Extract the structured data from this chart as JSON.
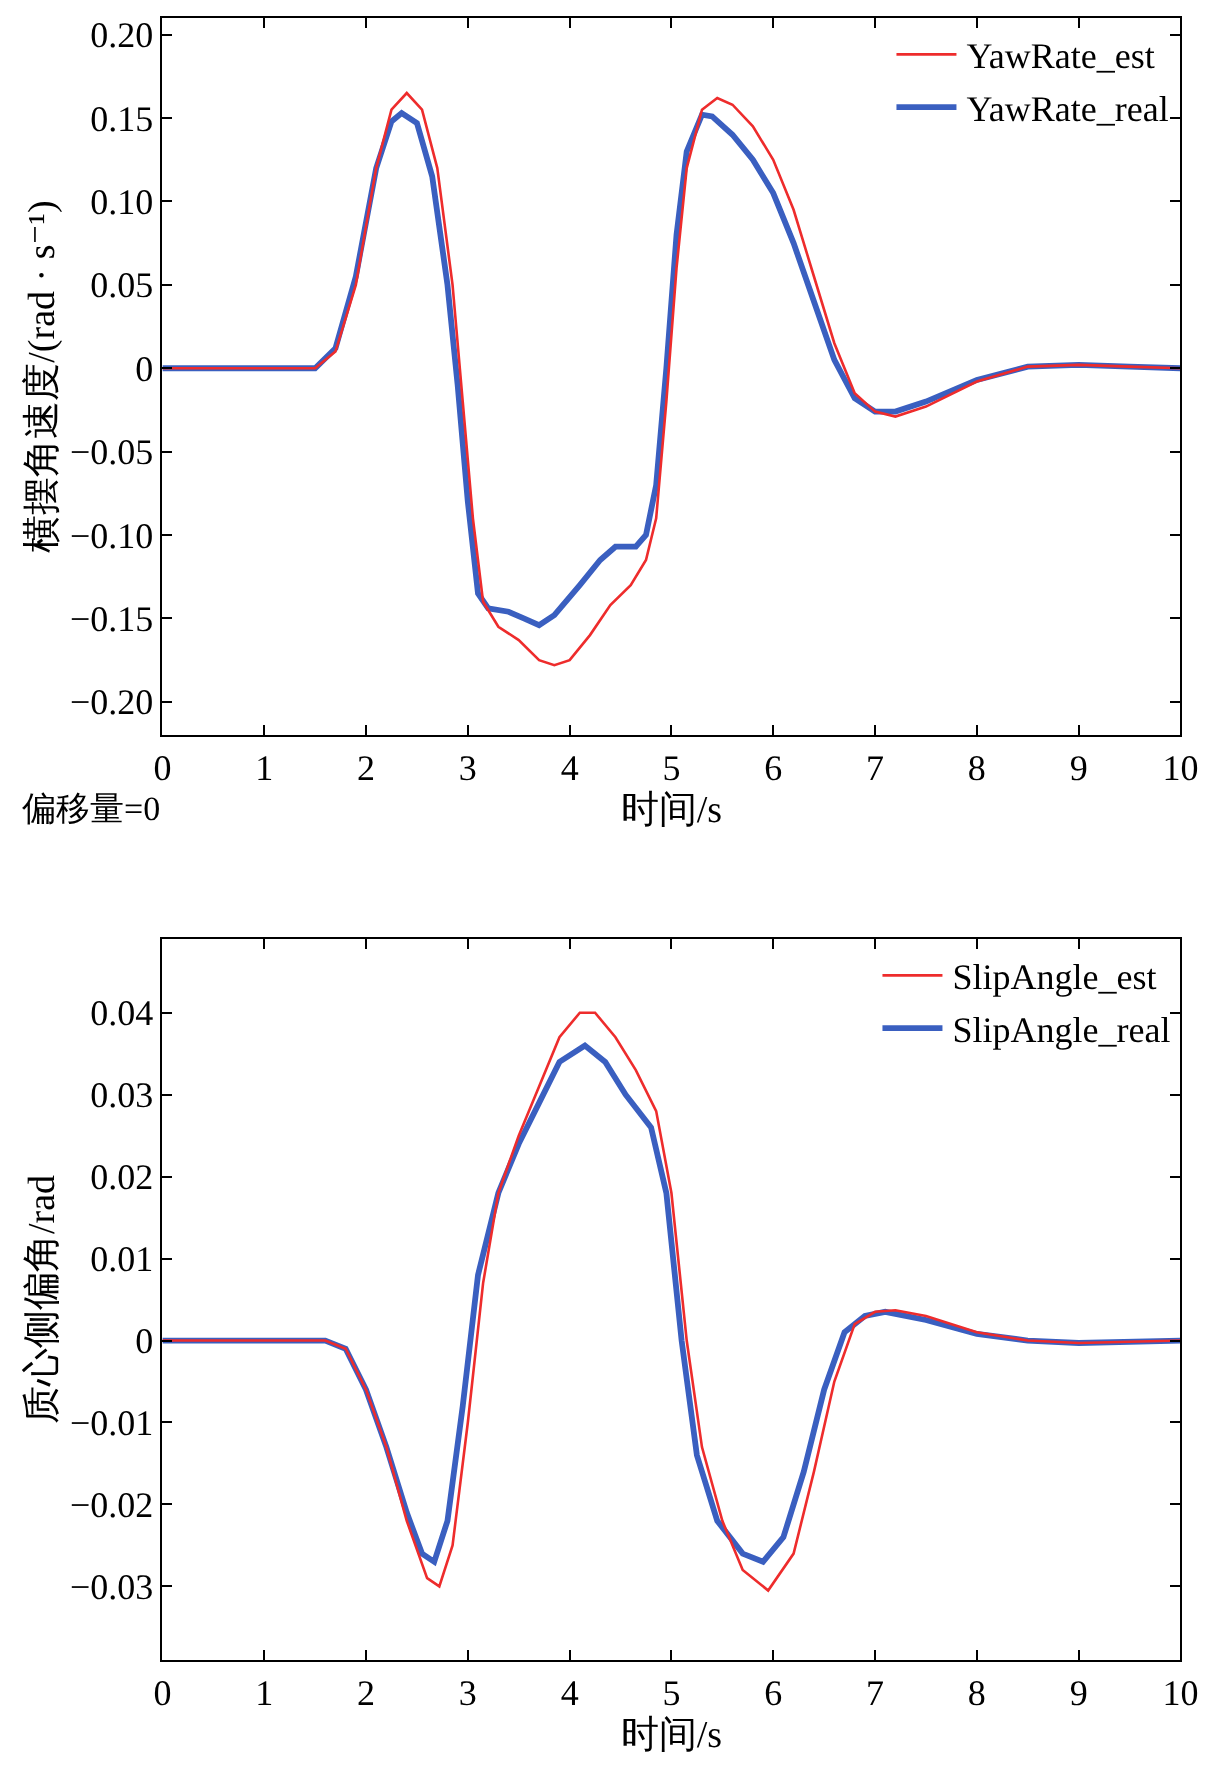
{
  "chart_data": [
    {
      "type": "line",
      "xlabel": "时间/s",
      "ylabel": "横摆角速度/(rad · s⁻¹)",
      "xlim": [
        0,
        10
      ],
      "xticks": [
        0,
        1,
        2,
        3,
        4,
        5,
        6,
        7,
        8,
        9,
        10
      ],
      "ylim": [
        -0.22,
        0.21
      ],
      "yticks": [
        {
          "value": -0.2,
          "label": "−0.20"
        },
        {
          "value": -0.15,
          "label": "−0.15"
        },
        {
          "value": -0.1,
          "label": "−0.10"
        },
        {
          "value": -0.05,
          "label": "−0.05"
        },
        0,
        {
          "value": 0.05,
          "label": "0.05"
        },
        {
          "value": 0.1,
          "label": "0.10"
        },
        {
          "value": 0.15,
          "label": "0.15"
        },
        {
          "value": 0.2,
          "label": "0.20"
        }
      ],
      "grid": false,
      "legend": "top right",
      "marker": "none",
      "line_style": "solid",
      "annotations": [
        "偏移量=0"
      ],
      "series": [
        {
          "name": "YawRate_est",
          "color": "#ee2c2c",
          "x": [
            0,
            1.5,
            1.7,
            1.9,
            2.1,
            2.25,
            2.4,
            2.55,
            2.7,
            2.85,
            2.95,
            3.05,
            3.15,
            3.3,
            3.5,
            3.7,
            3.85,
            4.0,
            4.2,
            4.4,
            4.6,
            4.75,
            4.85,
            4.95,
            5.05,
            5.15,
            5.3,
            5.45,
            5.6,
            5.8,
            6.0,
            6.2,
            6.4,
            6.6,
            6.8,
            7.0,
            7.2,
            7.5,
            8.0,
            8.5,
            9.0,
            9.5,
            10
          ],
          "values": [
            0,
            0,
            0.01,
            0.05,
            0.12,
            0.155,
            0.165,
            0.155,
            0.12,
            0.05,
            -0.02,
            -0.09,
            -0.14,
            -0.155,
            -0.163,
            -0.175,
            -0.178,
            -0.175,
            -0.16,
            -0.142,
            -0.13,
            -0.115,
            -0.09,
            -0.02,
            0.06,
            0.12,
            0.155,
            0.162,
            0.158,
            0.145,
            0.125,
            0.095,
            0.055,
            0.015,
            -0.015,
            -0.026,
            -0.029,
            -0.023,
            -0.008,
            0.001,
            0.002,
            0.001,
            0
          ]
        },
        {
          "name": "YawRate_real",
          "color": "#3a5fc0",
          "x": [
            0,
            1.5,
            1.7,
            1.9,
            2.1,
            2.25,
            2.35,
            2.5,
            2.65,
            2.8,
            2.9,
            3.0,
            3.1,
            3.2,
            3.4,
            3.55,
            3.7,
            3.85,
            4.1,
            4.3,
            4.45,
            4.65,
            4.75,
            4.85,
            4.95,
            5.05,
            5.15,
            5.3,
            5.4,
            5.6,
            5.8,
            6.0,
            6.2,
            6.4,
            6.6,
            6.8,
            7.0,
            7.2,
            7.5,
            8.0,
            8.5,
            9.0,
            9.5,
            10
          ],
          "values": [
            0,
            0,
            0.012,
            0.055,
            0.12,
            0.148,
            0.153,
            0.147,
            0.115,
            0.05,
            -0.01,
            -0.08,
            -0.135,
            -0.144,
            -0.146,
            -0.15,
            -0.154,
            -0.148,
            -0.13,
            -0.115,
            -0.107,
            -0.107,
            -0.1,
            -0.07,
            0.0,
            0.08,
            0.13,
            0.152,
            0.151,
            0.14,
            0.125,
            0.105,
            0.075,
            0.04,
            0.005,
            -0.018,
            -0.026,
            -0.026,
            -0.02,
            -0.007,
            0.001,
            0.002,
            0.001,
            0
          ]
        }
      ]
    },
    {
      "type": "line",
      "xlabel": "时间/s",
      "ylabel": "质心侧偏角/rad",
      "xlim": [
        0,
        10
      ],
      "xticks": [
        0,
        1,
        2,
        3,
        4,
        5,
        6,
        7,
        8,
        9,
        10
      ],
      "ylim": [
        -0.039,
        0.049
      ],
      "yticks": [
        {
          "value": -0.03,
          "label": "−0.03"
        },
        {
          "value": -0.02,
          "label": "−0.02"
        },
        {
          "value": -0.01,
          "label": "−0.01"
        },
        0,
        {
          "value": 0.01,
          "label": "0.01"
        },
        {
          "value": 0.02,
          "label": "0.02"
        },
        {
          "value": 0.03,
          "label": "0.03"
        },
        {
          "value": 0.04,
          "label": "0.04"
        }
      ],
      "grid": false,
      "legend": "top right",
      "marker": "none",
      "line_style": "solid",
      "series": [
        {
          "name": "SlipAngle_est",
          "color": "#ee2c2c",
          "x": [
            0,
            1.6,
            1.8,
            2.0,
            2.2,
            2.4,
            2.6,
            2.72,
            2.85,
            3.0,
            3.15,
            3.3,
            3.5,
            3.7,
            3.9,
            4.1,
            4.25,
            4.45,
            4.65,
            4.85,
            5.0,
            5.15,
            5.3,
            5.5,
            5.7,
            5.95,
            6.2,
            6.4,
            6.6,
            6.8,
            7.0,
            7.2,
            7.5,
            8.0,
            8.5,
            9.0,
            10
          ],
          "values": [
            0,
            0,
            -0.001,
            -0.006,
            -0.013,
            -0.022,
            -0.029,
            -0.03,
            -0.025,
            -0.01,
            0.007,
            0.018,
            0.025,
            0.031,
            0.037,
            0.04,
            0.04,
            0.037,
            0.033,
            0.028,
            0.018,
            0.0,
            -0.013,
            -0.022,
            -0.028,
            -0.0305,
            -0.026,
            -0.016,
            -0.005,
            0.002,
            0.0035,
            0.0037,
            0.003,
            0.001,
            0,
            -0.0003,
            0
          ]
        },
        {
          "name": "SlipAngle_real",
          "color": "#3a5fc0",
          "x": [
            0,
            1.6,
            1.8,
            2.0,
            2.2,
            2.4,
            2.55,
            2.67,
            2.8,
            2.95,
            3.1,
            3.3,
            3.5,
            3.7,
            3.9,
            4.15,
            4.35,
            4.55,
            4.8,
            4.95,
            5.1,
            5.25,
            5.45,
            5.7,
            5.9,
            6.1,
            6.3,
            6.5,
            6.7,
            6.9,
            7.1,
            7.5,
            8.0,
            8.5,
            9.0,
            10
          ],
          "values": [
            0,
            0,
            -0.001,
            -0.006,
            -0.013,
            -0.021,
            -0.026,
            -0.027,
            -0.022,
            -0.008,
            0.008,
            0.018,
            0.024,
            0.029,
            0.034,
            0.036,
            0.034,
            0.03,
            0.026,
            0.018,
            0.0,
            -0.014,
            -0.022,
            -0.026,
            -0.027,
            -0.024,
            -0.016,
            -0.006,
            0.001,
            0.003,
            0.0035,
            0.0025,
            0.0008,
            0,
            -0.0003,
            0
          ]
        }
      ]
    }
  ]
}
